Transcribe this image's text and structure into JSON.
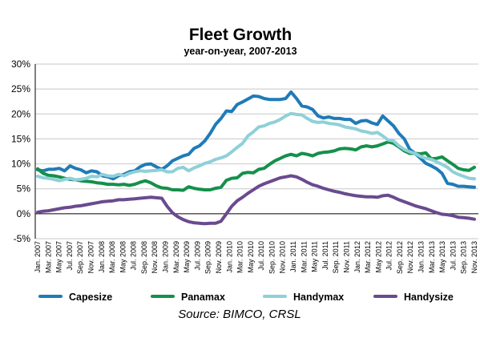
{
  "chart_data": {
    "type": "line",
    "title": "Fleet Growth",
    "subtitle": "year-on-year, 2007-2013",
    "source": "Source: BIMCO, CRSL",
    "ylim": [
      -5,
      30
    ],
    "yticks": [
      -5,
      0,
      5,
      10,
      15,
      20,
      25,
      30
    ],
    "ytick_labels": [
      "-5%",
      "0%",
      "5%",
      "10%",
      "15%",
      "20%",
      "25%",
      "30%"
    ],
    "grid": "horizontal",
    "legend_position": "bottom",
    "x_tick_labels": [
      "Jan. 2007",
      "Mar. 2007",
      "May 2007",
      "Jul. 2007",
      "Sep. 2007",
      "Nov. 2007",
      "Jan. 2008",
      "Mar. 2008",
      "May 2008",
      "Jul. 2008",
      "Sep. 2008",
      "Nov. 2008",
      "Jan. 2009",
      "Mar. 2009",
      "May 2009",
      "Jul. 2009",
      "Sep. 2009",
      "Nov. 2009",
      "Jan. 2010",
      "Mar. 2010",
      "May 2010",
      "Jul. 2010",
      "Sep. 2010",
      "Nov. 2010",
      "Jan. 2011",
      "Mar. 2011",
      "May 2011",
      "Jul. 2011",
      "Sep. 2011",
      "Nov. 2011",
      "Jan. 2012",
      "Mar. 2012",
      "May 2012",
      "Jul. 2012",
      "Sep. 2012",
      "Nov. 2012",
      "Jan. 2013",
      "Mar. 2013",
      "May 2013",
      "Jul. 2013",
      "Sep. 2013",
      "Nov. 2013"
    ],
    "series": [
      {
        "name": "Capesize",
        "color": "#1f7bb8",
        "values": [
          8.8,
          8.6,
          8.9,
          8.9,
          9.1,
          8.6,
          9.6,
          9.1,
          8.8,
          8.2,
          8.6,
          8.4,
          7.6,
          7.4,
          7.0,
          7.6,
          7.9,
          8.4,
          8.6,
          9.4,
          9.9,
          10.0,
          9.4,
          8.9,
          9.6,
          10.6,
          11.1,
          11.6,
          11.9,
          13.1,
          13.6,
          14.6,
          16.1,
          17.9,
          19.1,
          20.6,
          20.5,
          21.9,
          22.4,
          23.0,
          23.6,
          23.5,
          23.1,
          22.9,
          22.9,
          22.9,
          23.1,
          24.4,
          23.1,
          21.6,
          21.4,
          20.9,
          19.6,
          19.2,
          19.4,
          19.1,
          19.1,
          18.9,
          18.9,
          18.1,
          18.6,
          18.7,
          18.2,
          17.9,
          19.6,
          18.6,
          17.6,
          16.1,
          15.0,
          12.9,
          12.1,
          11.1,
          10.1,
          9.6,
          9.0,
          8.1,
          6.1,
          5.9,
          5.5,
          5.5,
          5.4,
          5.3
        ],
        "end_label": "5%"
      },
      {
        "name": "Panamax",
        "color": "#14904a",
        "values": [
          9.0,
          8.1,
          7.7,
          7.6,
          7.4,
          7.1,
          6.9,
          6.8,
          6.6,
          6.5,
          6.4,
          6.2,
          6.1,
          5.9,
          5.9,
          5.8,
          5.9,
          5.7,
          5.9,
          6.3,
          6.6,
          6.2,
          5.6,
          5.2,
          5.1,
          4.8,
          4.8,
          4.7,
          5.4,
          5.1,
          4.9,
          4.8,
          4.8,
          5.1,
          5.3,
          6.7,
          7.1,
          7.2,
          8.1,
          8.3,
          8.2,
          8.9,
          9.1,
          9.9,
          10.6,
          11.1,
          11.6,
          11.9,
          11.6,
          12.1,
          11.9,
          11.6,
          12.1,
          12.3,
          12.4,
          12.6,
          13.0,
          13.1,
          13.0,
          12.8,
          13.4,
          13.6,
          13.4,
          13.6,
          14.0,
          14.4,
          14.1,
          13.4,
          12.6,
          12.1,
          12.1,
          12.0,
          12.2,
          11.0,
          11.1,
          11.4,
          10.6,
          9.9,
          9.1,
          8.8,
          8.7,
          9.3
        ],
        "end_label": "9%"
      },
      {
        "name": "Handymax",
        "color": "#8fd0d8",
        "values": [
          7.5,
          7.2,
          7.1,
          6.9,
          6.6,
          6.9,
          7.1,
          6.8,
          6.9,
          7.1,
          7.5,
          7.4,
          7.9,
          7.6,
          7.5,
          7.9,
          7.6,
          8.1,
          8.4,
          8.6,
          8.5,
          8.6,
          8.7,
          8.8,
          8.4,
          8.4,
          9.1,
          9.3,
          8.6,
          9.2,
          9.6,
          10.1,
          10.4,
          10.9,
          11.2,
          11.6,
          12.4,
          13.3,
          14.1,
          15.6,
          16.4,
          17.4,
          17.6,
          18.1,
          18.4,
          18.9,
          19.6,
          20.1,
          19.9,
          19.8,
          19.1,
          18.5,
          18.3,
          18.4,
          18.1,
          18.0,
          17.8,
          17.4,
          17.2,
          17.0,
          16.6,
          16.4,
          16.1,
          16.3,
          15.6,
          14.8,
          14.6,
          13.6,
          12.9,
          12.4,
          12.1,
          11.5,
          11.1,
          10.9,
          10.4,
          9.9,
          9.3,
          8.4,
          7.9,
          7.5,
          7.1,
          7.0
        ],
        "end_label": "7%"
      },
      {
        "name": "Handysize",
        "color": "#6a4a8f",
        "values": [
          0.3,
          0.5,
          0.6,
          0.8,
          1.0,
          1.2,
          1.3,
          1.5,
          1.6,
          1.8,
          2.0,
          2.2,
          2.4,
          2.5,
          2.6,
          2.8,
          2.8,
          2.9,
          3.0,
          3.1,
          3.2,
          3.3,
          3.2,
          3.1,
          1.5,
          0.2,
          -0.6,
          -1.2,
          -1.6,
          -1.8,
          -1.9,
          -2.0,
          -1.9,
          -1.9,
          -1.5,
          0.0,
          1.5,
          2.6,
          3.3,
          4.1,
          4.8,
          5.5,
          6.0,
          6.4,
          6.8,
          7.2,
          7.4,
          7.6,
          7.4,
          6.9,
          6.3,
          5.8,
          5.5,
          5.1,
          4.8,
          4.5,
          4.3,
          4.0,
          3.8,
          3.6,
          3.5,
          3.4,
          3.4,
          3.3,
          3.6,
          3.7,
          3.3,
          2.8,
          2.4,
          2.0,
          1.6,
          1.3,
          1.0,
          0.6,
          0.2,
          -0.1,
          -0.2,
          -0.4,
          -0.7,
          -0.8,
          -0.9,
          -1.1
        ],
        "end_label": "-1%"
      }
    ]
  }
}
